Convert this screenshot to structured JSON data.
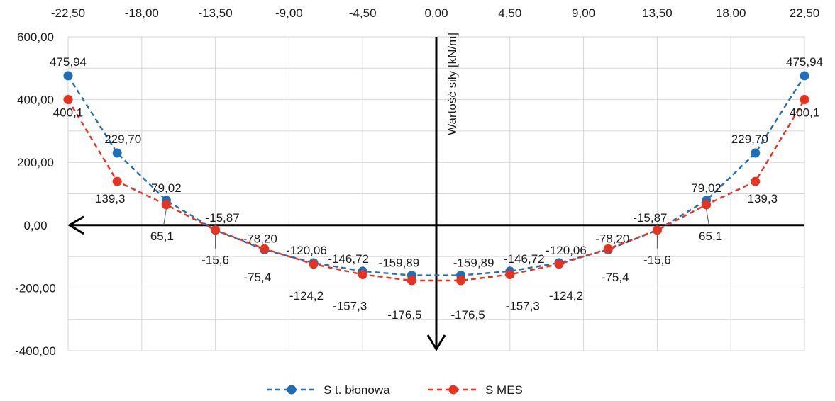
{
  "chart_data": {
    "type": "line",
    "ylabel": "Wartość siły [kN/m]",
    "x_ticks": [
      "-22,50",
      "-18,00",
      "-13,50",
      "-9,00",
      "-4,50",
      "0,00",
      "4,50",
      "9,00",
      "13,50",
      "18,00",
      "22,50"
    ],
    "y_ticks": [
      "600,00",
      "400,00",
      "200,00",
      "0,00",
      "-200,00",
      "-400,00"
    ],
    "xlim": [
      -22.5,
      22.5
    ],
    "ylim": [
      -400,
      600
    ],
    "grid": true,
    "legend_position": "bottom",
    "x": [
      -22.5,
      -19.5,
      -16.5,
      -13.5,
      -10.5,
      -7.5,
      -4.5,
      -1.5,
      1.5,
      4.5,
      7.5,
      10.5,
      13.5,
      16.5,
      19.5,
      22.5
    ],
    "series": [
      {
        "name": "S t. błonowa",
        "color": "#1f6fb8",
        "values": [
          475.94,
          229.7,
          79.02,
          -15.87,
          -78.2,
          -120.06,
          -146.72,
          -159.89,
          -159.89,
          -146.72,
          -120.06,
          -78.2,
          -15.87,
          79.02,
          229.7,
          475.94
        ],
        "labels": [
          "475,94",
          "229,70",
          "79,02",
          "-15,87",
          "-78,20",
          "-120,06",
          "-146,72",
          "-159,89",
          "-159,89",
          "-146,72",
          "-120,06",
          "-78,20",
          "-15,87",
          "79,02",
          "229,70",
          "475,94"
        ]
      },
      {
        "name": "S MES",
        "color": "#e8321e",
        "values": [
          400.1,
          139.3,
          65.1,
          -15.6,
          -75.4,
          -124.2,
          -157.3,
          -176.5,
          -176.5,
          -157.3,
          -124.2,
          -75.4,
          -15.6,
          65.1,
          139.3,
          400.1
        ],
        "labels": [
          "400,1",
          "139,3",
          "65,1",
          "-15,6",
          "-75,4",
          "-124,2",
          "-157,3",
          "-176,5",
          "-176,5",
          "-157,3",
          "-124,2",
          "-75,4",
          "-15,6",
          "65,1",
          "139,3",
          "400,1"
        ]
      }
    ]
  }
}
